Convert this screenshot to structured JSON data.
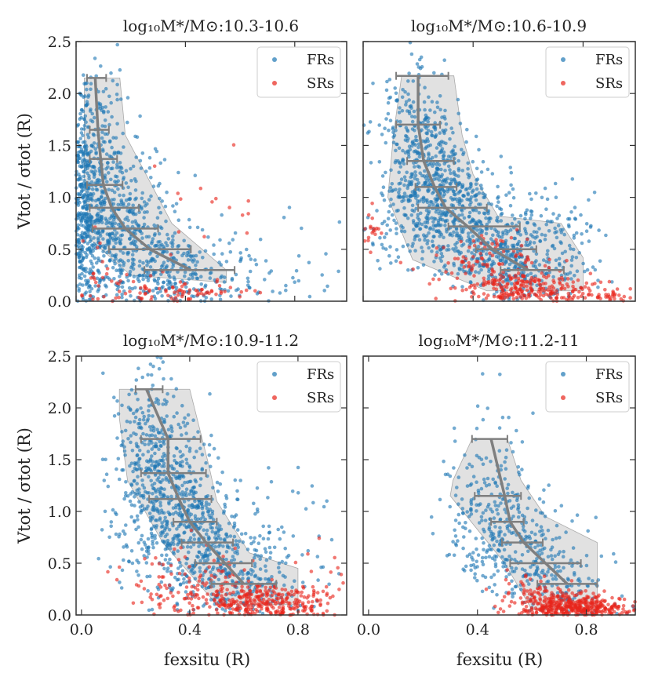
{
  "chart_data": [
    {
      "type": "scatter",
      "title": "log₁₀M*/M⊙:10.3-10.6",
      "xlabel": "",
      "ylabel": "Vtot / σtot (R)",
      "xlim": [
        0.0,
        0.99
      ],
      "ylim": [
        0.0,
        2.5
      ],
      "xticks": [
        "",
        "",
        ""
      ],
      "yticks": [
        "0.0",
        "0.5",
        "1.0",
        "1.5",
        "2.0",
        "2.5"
      ],
      "legend": {
        "position": "top-right",
        "entries": [
          "FRs",
          "SRs"
        ]
      },
      "series": [
        {
          "name": "FRs",
          "color": "#1f77b4",
          "n": 1300,
          "cloud": [
            [
              0.02,
              0.95,
              0.02,
              0.45,
              220
            ],
            [
              0.06,
              1.05,
              0.05,
              0.5,
              300
            ],
            [
              0.12,
              0.85,
              0.07,
              0.45,
              250
            ],
            [
              0.22,
              0.55,
              0.08,
              0.35,
              220
            ],
            [
              0.34,
              0.35,
              0.1,
              0.25,
              150
            ],
            [
              0.5,
              0.2,
              0.12,
              0.15,
              80
            ],
            [
              0.75,
              0.25,
              0.15,
              0.25,
              40
            ],
            [
              0.08,
              1.8,
              0.05,
              0.35,
              40
            ]
          ]
        },
        {
          "name": "SRs",
          "color": "#e8251b",
          "n": 120,
          "cloud": [
            [
              0.4,
              0.08,
              0.12,
              0.05,
              60
            ],
            [
              0.22,
              0.12,
              0.1,
              0.1,
              30
            ],
            [
              0.05,
              0.3,
              0.03,
              0.3,
              15
            ],
            [
              0.5,
              0.8,
              0.1,
              0.4,
              15
            ]
          ]
        }
      ],
      "median_line": {
        "x": [
          0.07,
          0.08,
          0.09,
          0.1,
          0.13,
          0.18,
          0.27,
          0.42
        ],
        "y": [
          2.15,
          1.65,
          1.37,
          1.12,
          0.9,
          0.7,
          0.5,
          0.3
        ]
      },
      "error_bars": [
        [
          0.04,
          0.11
        ],
        [
          0.05,
          0.12
        ],
        [
          0.05,
          0.15
        ],
        [
          0.04,
          0.17
        ],
        [
          0.05,
          0.23
        ],
        [
          0.06,
          0.3
        ],
        [
          0.12,
          0.42
        ],
        [
          0.25,
          0.58
        ]
      ],
      "shaded_region": [
        [
          0.03,
          2.15
        ],
        [
          0.16,
          2.15
        ],
        [
          0.18,
          1.6
        ],
        [
          0.26,
          1.2
        ],
        [
          0.35,
          0.75
        ],
        [
          0.55,
          0.3
        ],
        [
          0.55,
          0.18
        ],
        [
          0.2,
          0.25
        ],
        [
          0.05,
          0.6
        ],
        [
          0.03,
          1.2
        ]
      ]
    },
    {
      "type": "scatter",
      "title": "log₁₀M*/M⊙:10.6-10.9",
      "xlabel": "",
      "ylabel": "",
      "xlim": [
        0.0,
        0.99
      ],
      "ylim": [
        0.0,
        2.5
      ],
      "xticks": [
        "",
        "",
        ""
      ],
      "yticks": [
        "",
        "",
        "",
        "",
        "",
        ""
      ],
      "legend": {
        "position": "top-right",
        "entries": [
          "FRs",
          "SRs"
        ]
      },
      "series": [
        {
          "name": "FRs",
          "color": "#1f77b4",
          "n": 1400,
          "cloud": [
            [
              0.18,
              1.6,
              0.07,
              0.3,
              200
            ],
            [
              0.25,
              1.15,
              0.08,
              0.3,
              280
            ],
            [
              0.33,
              0.85,
              0.1,
              0.25,
              280
            ],
            [
              0.45,
              0.55,
              0.12,
              0.2,
              250
            ],
            [
              0.6,
              0.3,
              0.12,
              0.18,
              200
            ],
            [
              0.7,
              0.8,
              0.08,
              0.15,
              60
            ],
            [
              0.1,
              0.8,
              0.06,
              0.3,
              50
            ]
          ]
        },
        {
          "name": "SRs",
          "color": "#e8251b",
          "n": 400,
          "cloud": [
            [
              0.62,
              0.12,
              0.13,
              0.08,
              230
            ],
            [
              0.45,
              0.35,
              0.1,
              0.15,
              100
            ],
            [
              0.03,
              0.7,
              0.02,
              0.1,
              20
            ],
            [
              0.88,
              0.05,
              0.06,
              0.04,
              30
            ]
          ]
        }
      ],
      "median_line": {
        "x": [
          0.2,
          0.2,
          0.22,
          0.26,
          0.3,
          0.38,
          0.47,
          0.6
        ],
        "y": [
          2.17,
          1.7,
          1.35,
          1.1,
          0.9,
          0.72,
          0.5,
          0.3
        ]
      },
      "error_bars": [
        [
          0.12,
          0.31
        ],
        [
          0.12,
          0.28
        ],
        [
          0.16,
          0.33
        ],
        [
          0.19,
          0.34
        ],
        [
          0.2,
          0.45
        ],
        [
          0.31,
          0.57
        ],
        [
          0.41,
          0.63
        ],
        [
          0.5,
          0.73
        ]
      ],
      "shaded_region": [
        [
          0.14,
          2.17
        ],
        [
          0.33,
          2.17
        ],
        [
          0.36,
          1.6
        ],
        [
          0.4,
          1.22
        ],
        [
          0.49,
          0.82
        ],
        [
          0.72,
          0.75
        ],
        [
          0.8,
          0.42
        ],
        [
          0.8,
          0.1
        ],
        [
          0.45,
          0.1
        ],
        [
          0.18,
          0.4
        ],
        [
          0.09,
          1.0
        ],
        [
          0.11,
          1.6
        ]
      ]
    },
    {
      "type": "scatter",
      "title": "log₁₀M*/M⊙:10.9-11.2",
      "xlabel": "fexsitu (R)",
      "ylabel": "Vtot / σtot (R)",
      "xlim": [
        -0.02,
        0.98
      ],
      "ylim": [
        0.0,
        2.5
      ],
      "xticks": [
        "0.0",
        "0.4",
        "0.8"
      ],
      "yticks": [
        "0.0",
        "0.5",
        "1.0",
        "1.5",
        "2.0",
        "2.5"
      ],
      "legend": {
        "position": "top-right",
        "entries": [
          "FRs",
          "SRs"
        ]
      },
      "series": [
        {
          "name": "FRs",
          "color": "#1f77b4",
          "n": 1150,
          "cloud": [
            [
              0.26,
              1.75,
              0.07,
              0.35,
              200
            ],
            [
              0.32,
              1.25,
              0.08,
              0.3,
              280
            ],
            [
              0.4,
              0.85,
              0.1,
              0.25,
              250
            ],
            [
              0.5,
              0.5,
              0.12,
              0.2,
              200
            ],
            [
              0.62,
              0.25,
              0.12,
              0.15,
              120
            ],
            [
              0.18,
              0.9,
              0.06,
              0.4,
              40
            ],
            [
              0.75,
              0.8,
              0.12,
              0.3,
              40
            ]
          ]
        },
        {
          "name": "SRs",
          "color": "#e8251b",
          "n": 450,
          "cloud": [
            [
              0.68,
              0.12,
              0.12,
              0.08,
              270
            ],
            [
              0.48,
              0.25,
              0.12,
              0.15,
              100
            ],
            [
              0.3,
              0.3,
              0.08,
              0.2,
              40
            ],
            [
              0.88,
              0.25,
              0.05,
              0.2,
              20
            ]
          ]
        }
      ],
      "median_line": {
        "x": [
          0.24,
          0.32,
          0.32,
          0.36,
          0.4,
          0.46,
          0.53,
          0.6
        ],
        "y": [
          2.18,
          1.7,
          1.37,
          1.12,
          0.9,
          0.7,
          0.5,
          0.3
        ]
      },
      "error_bars": [
        [
          0.2,
          0.3
        ],
        [
          0.22,
          0.44
        ],
        [
          0.22,
          0.46
        ],
        [
          0.25,
          0.48
        ],
        [
          0.34,
          0.5
        ],
        [
          0.37,
          0.56
        ],
        [
          0.42,
          0.63
        ],
        [
          0.48,
          0.72
        ]
      ],
      "shaded_region": [
        [
          0.14,
          2.18
        ],
        [
          0.4,
          2.18
        ],
        [
          0.47,
          1.45
        ],
        [
          0.5,
          1.1
        ],
        [
          0.62,
          0.6
        ],
        [
          0.8,
          0.45
        ],
        [
          0.8,
          0.1
        ],
        [
          0.5,
          0.1
        ],
        [
          0.3,
          0.7
        ],
        [
          0.17,
          1.3
        ],
        [
          0.14,
          1.9
        ]
      ]
    },
    {
      "type": "scatter",
      "title": "log₁₀M*/M⊙:11.2-11",
      "xlabel": "fexsitu (R)",
      "ylabel": "",
      "xlim": [
        -0.02,
        0.98
      ],
      "ylim": [
        0.0,
        2.5
      ],
      "xticks": [
        "0.0",
        "0.4",
        "0.8"
      ],
      "yticks": [
        "",
        "",
        "",
        "",
        "",
        ""
      ],
      "legend": {
        "position": "top-right",
        "entries": [
          "FRs",
          "SRs"
        ]
      },
      "series": [
        {
          "name": "FRs",
          "color": "#1f77b4",
          "n": 500,
          "cloud": [
            [
              0.45,
              1.3,
              0.08,
              0.35,
              100
            ],
            [
              0.5,
              0.85,
              0.1,
              0.25,
              150
            ],
            [
              0.6,
              0.5,
              0.12,
              0.2,
              150
            ],
            [
              0.72,
              0.2,
              0.12,
              0.15,
              80
            ],
            [
              0.35,
              0.9,
              0.05,
              0.3,
              30
            ]
          ]
        },
        {
          "name": "SRs",
          "color": "#e8251b",
          "n": 450,
          "cloud": [
            [
              0.75,
              0.08,
              0.1,
              0.06,
              380
            ],
            [
              0.62,
              0.2,
              0.08,
              0.1,
              70
            ]
          ]
        }
      ],
      "median_line": {
        "x": [
          0.45,
          0.5,
          0.52,
          0.57,
          0.65,
          0.73
        ],
        "y": [
          1.7,
          1.15,
          0.9,
          0.7,
          0.5,
          0.3
        ]
      },
      "error_bars": [
        [
          0.38,
          0.51
        ],
        [
          0.39,
          0.56
        ],
        [
          0.45,
          0.57
        ],
        [
          0.49,
          0.64
        ],
        [
          0.52,
          0.78
        ],
        [
          0.62,
          0.84
        ]
      ],
      "shaded_region": [
        [
          0.38,
          1.7
        ],
        [
          0.51,
          1.7
        ],
        [
          0.56,
          1.3
        ],
        [
          0.65,
          0.95
        ],
        [
          0.84,
          0.7
        ],
        [
          0.84,
          0.05
        ],
        [
          0.6,
          0.05
        ],
        [
          0.5,
          0.5
        ],
        [
          0.3,
          1.15
        ],
        [
          0.31,
          1.3
        ]
      ]
    }
  ]
}
